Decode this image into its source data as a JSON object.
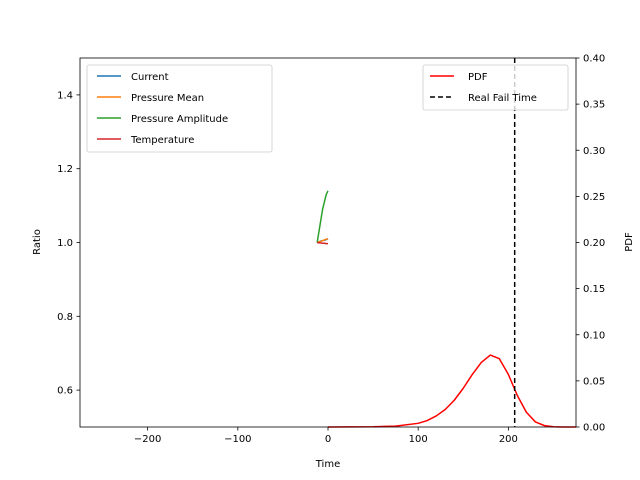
{
  "chart_data": {
    "type": "line",
    "title": "",
    "xlabel": "Time",
    "ylabel": "Ratio",
    "ylabel_right": "PDF",
    "xlim": [
      -275,
      275
    ],
    "ylim": [
      0.5,
      1.5
    ],
    "ylim_right": [
      0.0,
      0.4
    ],
    "xticks": [
      -200,
      -100,
      0,
      100,
      200
    ],
    "yticks": [
      0.6,
      0.8,
      1.0,
      1.2,
      1.4
    ],
    "yticks_right": [
      0.0,
      0.05,
      0.1,
      0.15,
      0.2,
      0.25,
      0.3,
      0.35,
      0.4
    ],
    "xtick_labels": [
      "−200",
      "−100",
      "0",
      "100",
      "200"
    ],
    "ytick_labels": [
      "0.6",
      "0.8",
      "1.0",
      "1.2",
      "1.4"
    ],
    "ytick_labels_right": [
      "0.00",
      "0.05",
      "0.10",
      "0.15",
      "0.20",
      "0.25",
      "0.30",
      "0.35",
      "0.40"
    ],
    "grid": false,
    "legend_left_placement": "upper-left",
    "legend_right_placement": "upper-right",
    "series": [
      {
        "name": "Current",
        "axis": "left",
        "color": "#1f77b4",
        "dash": "solid",
        "x": [
          -12,
          -10,
          -8,
          -6,
          -4,
          -2,
          0
        ],
        "y": [
          1.0,
          1.002,
          1.004,
          1.005,
          1.006,
          1.008,
          1.01
        ]
      },
      {
        "name": "Pressure Mean",
        "axis": "left",
        "color": "#ff7f0e",
        "dash": "solid",
        "x": [
          -12,
          -10,
          -8,
          -6,
          -4,
          -2,
          0
        ],
        "y": [
          1.0,
          1.002,
          1.003,
          1.005,
          1.007,
          1.009,
          1.01
        ]
      },
      {
        "name": "Pressure Amplitude",
        "axis": "left",
        "color": "#2ca02c",
        "dash": "solid",
        "x": [
          -12,
          -10,
          -8,
          -6,
          -4,
          -2,
          0
        ],
        "y": [
          1.0,
          1.03,
          1.06,
          1.09,
          1.11,
          1.13,
          1.14
        ]
      },
      {
        "name": "Temperature",
        "axis": "left",
        "color": "#d62728",
        "dash": "solid",
        "x": [
          -12,
          -10,
          -8,
          -6,
          -4,
          -2,
          0
        ],
        "y": [
          1.0,
          0.999,
          0.999,
          0.998,
          0.998,
          0.997,
          0.997
        ]
      },
      {
        "name": "PDF",
        "axis": "right",
        "color": "#ff0000",
        "dash": "solid",
        "x": [
          0,
          50,
          75,
          100,
          110,
          120,
          130,
          140,
          150,
          160,
          170,
          180,
          190,
          200,
          210,
          220,
          230,
          240,
          250,
          260,
          275
        ],
        "y": [
          0.0,
          0.0003,
          0.001,
          0.004,
          0.007,
          0.012,
          0.019,
          0.029,
          0.042,
          0.057,
          0.07,
          0.078,
          0.074,
          0.057,
          0.034,
          0.016,
          0.0055,
          0.0015,
          0.0003,
          0.0,
          0.0
        ]
      },
      {
        "name": "Real Fail Time",
        "axis": "right",
        "color": "#000000",
        "dash": "dashed",
        "vline_x": 207
      }
    ]
  }
}
